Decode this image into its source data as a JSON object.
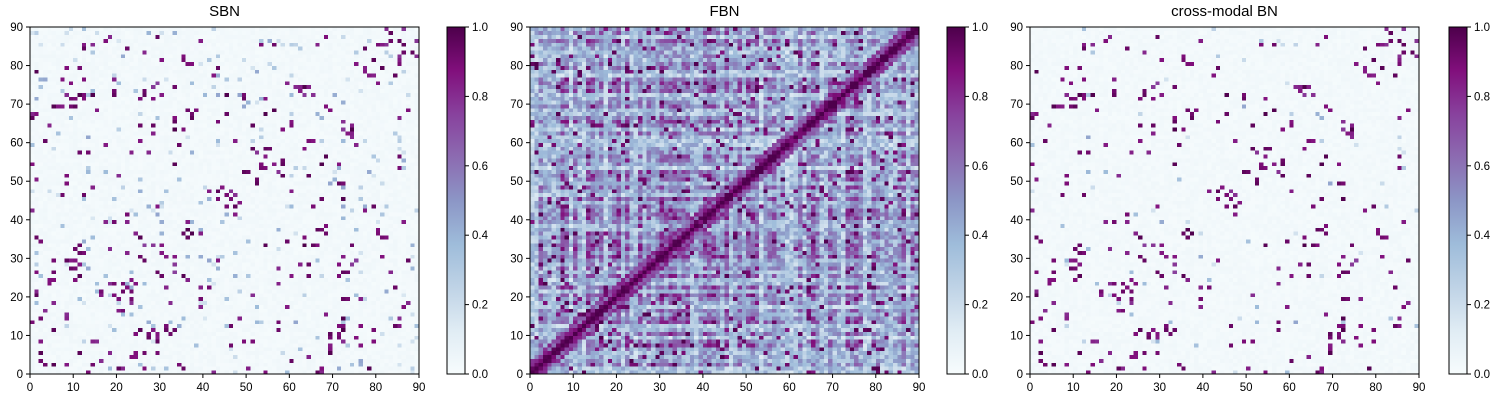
{
  "chart_data": [
    {
      "type": "heatmap",
      "title": "SBN",
      "xlim": [
        0,
        90
      ],
      "ylim": [
        0,
        90
      ],
      "x_ticks": [
        0,
        10,
        20,
        30,
        40,
        50,
        60,
        70,
        80,
        90
      ],
      "y_ticks": [
        0,
        10,
        20,
        30,
        40,
        50,
        60,
        70,
        80,
        90
      ],
      "grid_size": 90,
      "colormap": "BuPu",
      "colorbar": {
        "range": [
          0.0,
          1.0
        ],
        "ticks": [
          "0.0",
          "0.2",
          "0.4",
          "0.6",
          "0.8",
          "1.0"
        ]
      },
      "pattern": "sparse binary-like connectivity with scattered high-strength clusters; symmetric about the diagonal"
    },
    {
      "type": "heatmap",
      "title": "FBN",
      "xlim": [
        0,
        90
      ],
      "ylim": [
        0,
        90
      ],
      "x_ticks": [
        0,
        10,
        20,
        30,
        40,
        50,
        60,
        70,
        80,
        90
      ],
      "y_ticks": [
        0,
        10,
        20,
        30,
        40,
        50,
        60,
        70,
        80,
        90
      ],
      "grid_size": 90,
      "colormap": "BuPu",
      "colorbar": {
        "range": [
          0.0,
          1.0
        ],
        "ticks": [
          "0.0",
          "0.2",
          "0.4",
          "0.6",
          "0.8",
          "1.0"
        ]
      },
      "pattern": "dense continuous connectivity with strong main diagonal; symmetric"
    },
    {
      "type": "heatmap",
      "title": "cross-modal BN",
      "xlim": [
        0,
        90
      ],
      "ylim": [
        0,
        90
      ],
      "x_ticks": [
        0,
        10,
        20,
        30,
        40,
        50,
        60,
        70,
        80,
        90
      ],
      "y_ticks": [
        0,
        10,
        20,
        30,
        40,
        50,
        60,
        70,
        80,
        90
      ],
      "grid_size": 90,
      "colormap": "BuPu",
      "colorbar": {
        "range": [
          0.0,
          1.0
        ],
        "ticks": [
          "0.0",
          "0.2",
          "0.4",
          "0.6",
          "0.8",
          "1.0"
        ]
      },
      "pattern": "sparse connectivity resembling SBN with fewer faint cells; symmetric"
    }
  ],
  "colormap_stops": [
    "#f7fcfd",
    "#e0ecf4",
    "#bfd3e6",
    "#9ebcda",
    "#8c96c6",
    "#8c6bb1",
    "#88419d",
    "#810f7c",
    "#4d004b"
  ]
}
